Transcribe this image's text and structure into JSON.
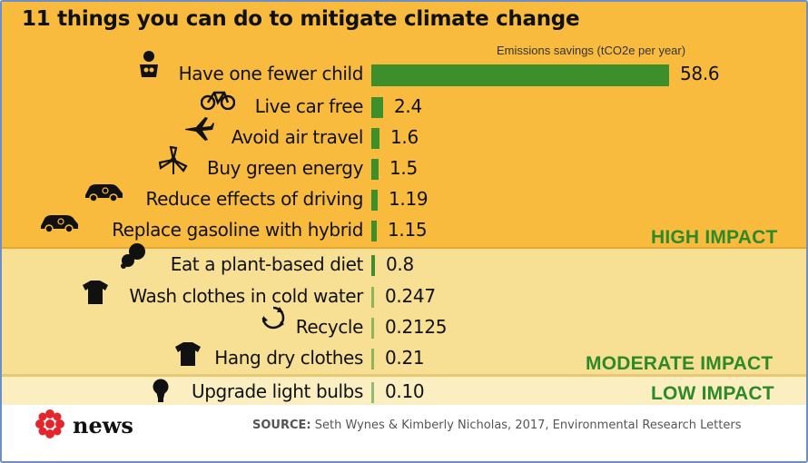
{
  "title": "11 things you can do to mitigate climate change",
  "chart_data": {
    "type": "bar",
    "orientation": "horizontal",
    "legend": "Emissions savings (tCO2e per year)",
    "categories": [
      "Have one fewer child",
      "Live car free",
      "Avoid air travel",
      "Buy green energy",
      "Reduce effects of driving",
      "Replace gasoline with hybrid",
      "Eat a plant-based diet",
      "Wash clothes in cold water",
      "Recycle",
      "Hang dry clothes",
      "Upgrade light bulbs"
    ],
    "values": [
      58.6,
      2.4,
      1.6,
      1.5,
      1.19,
      1.15,
      0.8,
      0.247,
      0.2125,
      0.21,
      0.1
    ],
    "value_labels": [
      "58.6",
      "2.4",
      "1.6",
      "1.5",
      "1.19",
      "1.15",
      "0.8",
      "0.247",
      "0.2125",
      "0.21",
      "0.10"
    ],
    "groups": [
      {
        "label": "HIGH IMPACT",
        "count": 6,
        "color": "#f8bb3e"
      },
      {
        "label": "MODERATE IMPACT",
        "count": 4,
        "color": "#f7df93"
      },
      {
        "label": "LOW IMPACT",
        "count": 1,
        "color": "#fbefc2"
      }
    ],
    "bar_color": "#3d8f2c",
    "icons": [
      "baby-icon",
      "bicycle-icon",
      "airplane-icon",
      "wind-turbine-icon",
      "car-icon",
      "car-icon",
      "food-icon",
      "tshirt-icon",
      "recycle-icon",
      "tshirt-icon",
      "lightbulb-icon"
    ]
  },
  "footer": {
    "logo_text": "news",
    "source_prefix": "SOURCE:",
    "source_text": " Seth Wynes & Kimberly Nicholas, 2017, Environmental Research Letters"
  },
  "colors": {
    "accent_green": "#2e8a28",
    "logo_red": "#e4262c"
  }
}
